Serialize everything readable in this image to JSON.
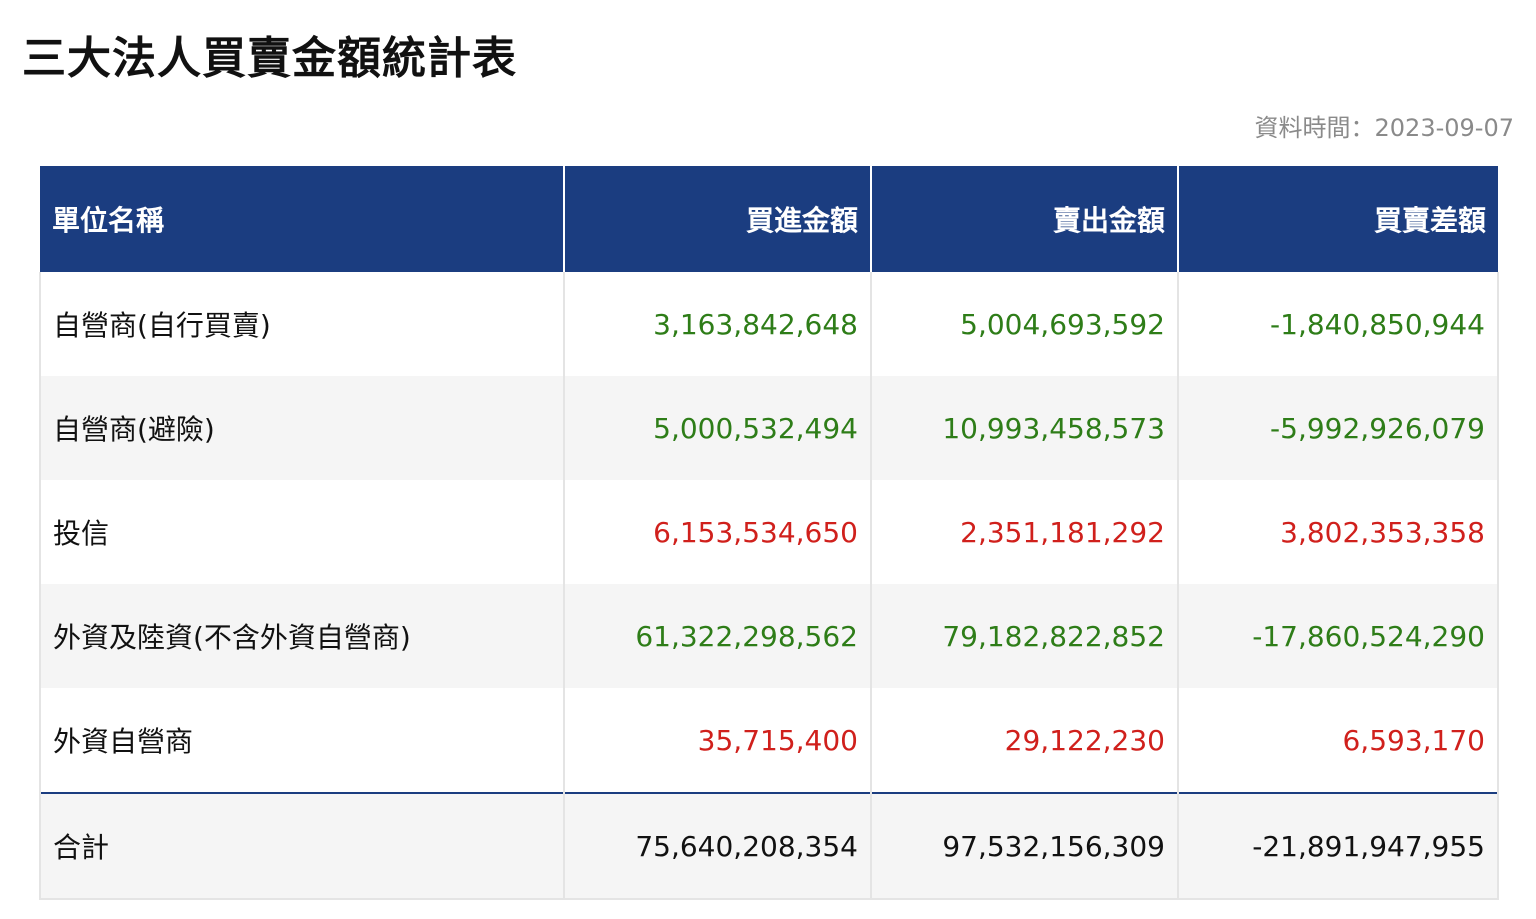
{
  "page": {
    "title": "三大法人買賣金額統計表",
    "data_time": "資料時間：2023-09-07"
  },
  "table": {
    "headers": [
      "單位名稱",
      "買進金額",
      "賣出金額",
      "買賣差額"
    ],
    "rows": [
      {
        "name": "自營商(自行買賣)",
        "buy": "3,163,842,648",
        "sell": "5,004,693,592",
        "diff": "-1,840,850,944",
        "trend": "down"
      },
      {
        "name": "自營商(避險)",
        "buy": "5,000,532,494",
        "sell": "10,993,458,573",
        "diff": "-5,992,926,079",
        "trend": "down"
      },
      {
        "name": "投信",
        "buy": "6,153,534,650",
        "sell": "2,351,181,292",
        "diff": "3,802,353,358",
        "trend": "up"
      },
      {
        "name": "外資及陸資(不含外資自營商)",
        "buy": "61,322,298,562",
        "sell": "79,182,822,852",
        "diff": "-17,860,524,290",
        "trend": "down"
      },
      {
        "name": "外資自營商",
        "buy": "35,715,400",
        "sell": "29,122,230",
        "diff": "6,593,170",
        "trend": "up"
      }
    ],
    "total": {
      "name": "合計",
      "buy": "75,640,208,354",
      "sell": "97,532,156,309",
      "diff": "-21,891,947,955"
    }
  },
  "colors": {
    "header_bg": "#1b3d80",
    "positive": "#d0201c",
    "negative": "#2e7d18"
  }
}
